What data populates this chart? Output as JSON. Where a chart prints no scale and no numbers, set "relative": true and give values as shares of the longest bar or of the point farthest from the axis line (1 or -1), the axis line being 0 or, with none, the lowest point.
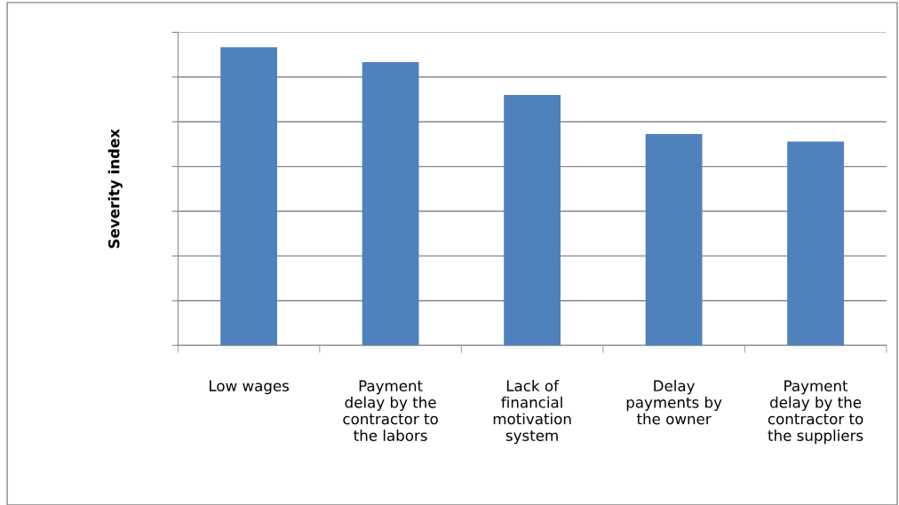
{
  "chart_data": {
    "type": "bar",
    "ylabel": "Severity index",
    "relative": true,
    "categories": [
      "Low wages",
      "Payment\ndelay by the\ncontractor to\nthe labors",
      "Lack of\nfinancial\nmotivation\nsystem",
      "Delay\npayments by\nthe owner",
      "Payment\ndelay by the\ncontractor to\nthe suppliers"
    ],
    "values": [
      1.0,
      0.95,
      0.84,
      0.709,
      0.684
    ],
    "color": "#4f81bd",
    "grid": "y",
    "legend": false
  }
}
